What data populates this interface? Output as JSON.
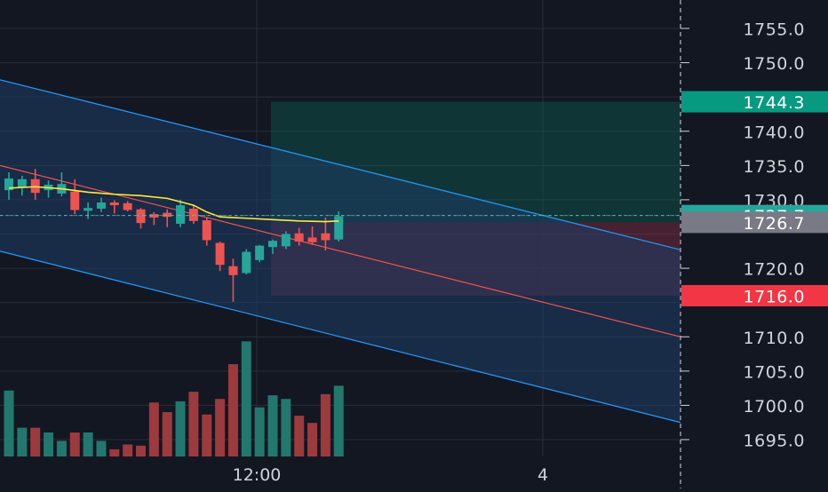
{
  "chart_data": {
    "type": "candlestick",
    "title": "",
    "y_axis": {
      "ticks": [
        1755.0,
        1750.0,
        1740.0,
        1735.0,
        1730.0,
        1720.0,
        1710.0,
        1705.0,
        1700.0,
        1695.0
      ],
      "tick_labels": [
        "1755.0",
        "1750.0",
        "1740.0",
        "1735.0",
        "1730.0",
        "1720.0",
        "1710.0",
        "1705.0",
        "1700.0",
        "1695.0"
      ],
      "range": [
        1691.5,
        1757.6
      ]
    },
    "x_axis": {
      "tick_labels": [
        "12:00",
        "4"
      ]
    },
    "grid": true,
    "price_labels": [
      {
        "value": 1744.3,
        "label": "1744.3",
        "color": "#089981",
        "text_color": "#ffffff"
      },
      {
        "value": 1727.7,
        "label": "1727.7",
        "color": "#26a69a",
        "text_color": "#ffffff"
      },
      {
        "value": 1726.7,
        "label": "1726.7",
        "color": "#787b86",
        "text_color": "#ffffff"
      },
      {
        "value": 1716.0,
        "label": "1716.0",
        "color": "#f23645",
        "text_color": "#ffffff"
      }
    ],
    "current_price": 1727.7,
    "candles": [
      {
        "open": 1731.4,
        "high": 1734.0,
        "low": 1730.0,
        "close": 1733.1
      },
      {
        "open": 1731.8,
        "high": 1733.5,
        "low": 1730.6,
        "close": 1733.0
      },
      {
        "open": 1733.0,
        "high": 1734.5,
        "low": 1730.0,
        "close": 1731.0
      },
      {
        "open": 1731.4,
        "high": 1732.8,
        "low": 1730.3,
        "close": 1732.2
      },
      {
        "open": 1730.9,
        "high": 1734.0,
        "low": 1730.5,
        "close": 1732.3
      },
      {
        "open": 1731.2,
        "high": 1733.0,
        "low": 1727.9,
        "close": 1728.5
      },
      {
        "open": 1728.4,
        "high": 1729.6,
        "low": 1727.2,
        "close": 1728.8
      },
      {
        "open": 1728.7,
        "high": 1730.3,
        "low": 1728.2,
        "close": 1729.6
      },
      {
        "open": 1729.6,
        "high": 1729.9,
        "low": 1728.0,
        "close": 1729.2
      },
      {
        "open": 1729.5,
        "high": 1729.8,
        "low": 1728.3,
        "close": 1728.5
      },
      {
        "open": 1728.6,
        "high": 1728.8,
        "low": 1725.8,
        "close": 1726.6
      },
      {
        "open": 1727.9,
        "high": 1728.2,
        "low": 1726.3,
        "close": 1727.4
      },
      {
        "open": 1728.1,
        "high": 1728.6,
        "low": 1726.0,
        "close": 1727.5
      },
      {
        "open": 1726.5,
        "high": 1730.0,
        "low": 1726.0,
        "close": 1729.2
      },
      {
        "open": 1728.7,
        "high": 1729.2,
        "low": 1726.5,
        "close": 1726.9
      },
      {
        "open": 1727.0,
        "high": 1727.4,
        "low": 1723.3,
        "close": 1724.1
      },
      {
        "open": 1723.7,
        "high": 1723.9,
        "low": 1719.6,
        "close": 1720.5
      },
      {
        "open": 1720.3,
        "high": 1721.4,
        "low": 1715.1,
        "close": 1719.0
      },
      {
        "open": 1719.3,
        "high": 1722.8,
        "low": 1719.1,
        "close": 1722.4
      },
      {
        "open": 1721.2,
        "high": 1723.4,
        "low": 1720.9,
        "close": 1723.3
      },
      {
        "open": 1723.1,
        "high": 1724.2,
        "low": 1722.1,
        "close": 1724.0
      },
      {
        "open": 1723.2,
        "high": 1725.4,
        "low": 1722.8,
        "close": 1725.0
      },
      {
        "open": 1725.1,
        "high": 1725.9,
        "low": 1723.3,
        "close": 1723.9
      },
      {
        "open": 1724.5,
        "high": 1726.1,
        "low": 1723.4,
        "close": 1723.8
      },
      {
        "open": 1725.1,
        "high": 1727.4,
        "low": 1722.6,
        "close": 1724.1
      },
      {
        "open": 1724.2,
        "high": 1728.3,
        "low": 1723.9,
        "close": 1727.6
      }
    ],
    "volumes": [
      0.55,
      0.24,
      0.24,
      0.2,
      0.13,
      0.2,
      0.2,
      0.13,
      0.06,
      0.1,
      0.09,
      0.45,
      0.37,
      0.46,
      0.54,
      0.35,
      0.48,
      0.77,
      0.96,
      0.41,
      0.51,
      0.48,
      0.34,
      0.28,
      0.52,
      0.59
    ],
    "ema": [
      [
        0,
        1731.7
      ],
      [
        2,
        1731.9
      ],
      [
        4,
        1731.6
      ],
      [
        6,
        1731.1
      ],
      [
        8,
        1730.8
      ],
      [
        10,
        1730.6
      ],
      [
        12,
        1730.2
      ],
      [
        13,
        1729.7
      ],
      [
        14,
        1729.2
      ],
      [
        15,
        1728.2
      ],
      [
        16,
        1727.5
      ],
      [
        18,
        1727.3
      ],
      [
        20,
        1727.1
      ],
      [
        22,
        1726.9
      ],
      [
        24,
        1726.8
      ],
      [
        25,
        1726.9
      ]
    ],
    "regression_channel": {
      "start_x": 0,
      "end_x": 766,
      "mid_start": 1735.0,
      "mid_end": 1710.0,
      "upper_start": 1747.5,
      "upper_end": 1722.7,
      "lower_start": 1722.5,
      "lower_end": 1697.5
    },
    "position": {
      "type": "long",
      "entry": 1726.7,
      "target": 1744.3,
      "stop": 1716.0
    }
  },
  "colors": {
    "background": "#131722",
    "grid": "#2a2e39",
    "axis_text": "#d1d4dc",
    "bull": "#26a69a",
    "bear": "#ef5350",
    "channel_line": "#2196f3",
    "channel_fill": "#1e3d66",
    "mid_line": "#ef5350",
    "ema": "#ffeb3b",
    "target_zone": "#0f3d39",
    "stop_zone": "#4a2638"
  }
}
